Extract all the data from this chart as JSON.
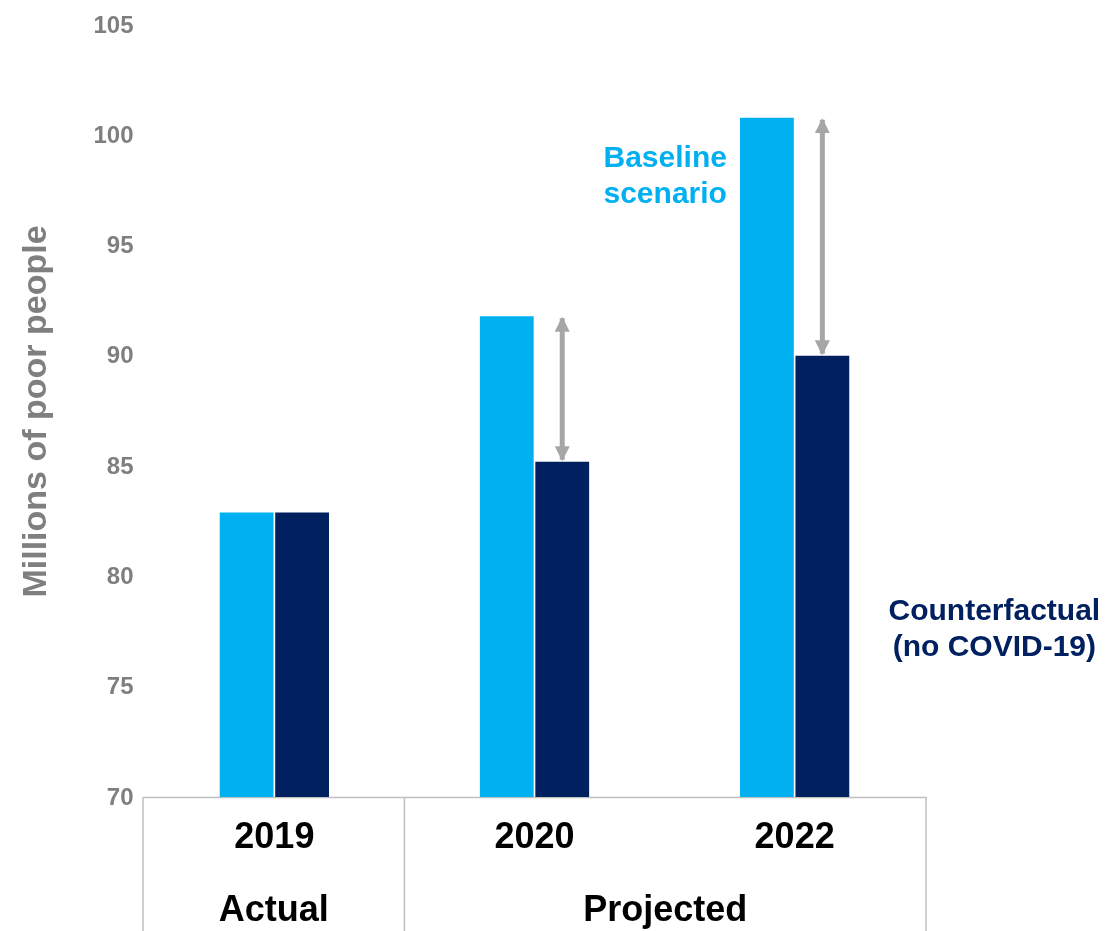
{
  "chart_data": {
    "type": "bar",
    "ylabel": "Millions of poor people",
    "categories": [
      "2019",
      "2020",
      "2022"
    ],
    "series": [
      {
        "name": "Baseline scenario",
        "color": "#00b0f0",
        "values": [
          82.9,
          91.8,
          100.8
        ]
      },
      {
        "name": "Counterfactual (no COVID-19)",
        "color": "#002060",
        "values": [
          82.9,
          85.2,
          90.0
        ]
      }
    ],
    "ylim": [
      70,
      105
    ],
    "yticks": [
      70,
      75,
      80,
      85,
      90,
      95,
      100,
      105
    ],
    "annotations": [
      "Actual",
      "Projected"
    ]
  }
}
